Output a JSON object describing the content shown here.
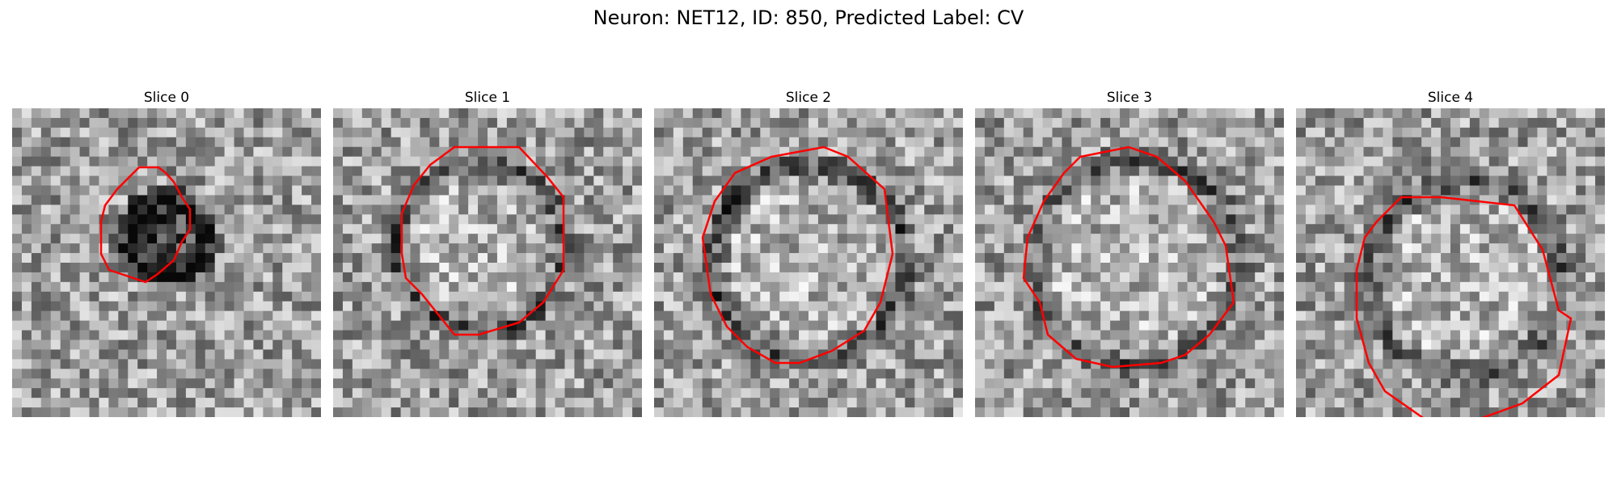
{
  "figure": {
    "title": "Neuron: NET12, ID: 850, Predicted Label: CV"
  },
  "colors": {
    "contour": "#ff0000",
    "background": "#ffffff"
  },
  "panels": [
    {
      "title": "Slice 0"
    },
    {
      "title": "Slice 1"
    },
    {
      "title": "Slice 2"
    },
    {
      "title": "Slice 3"
    },
    {
      "title": "Slice 4"
    }
  ]
}
